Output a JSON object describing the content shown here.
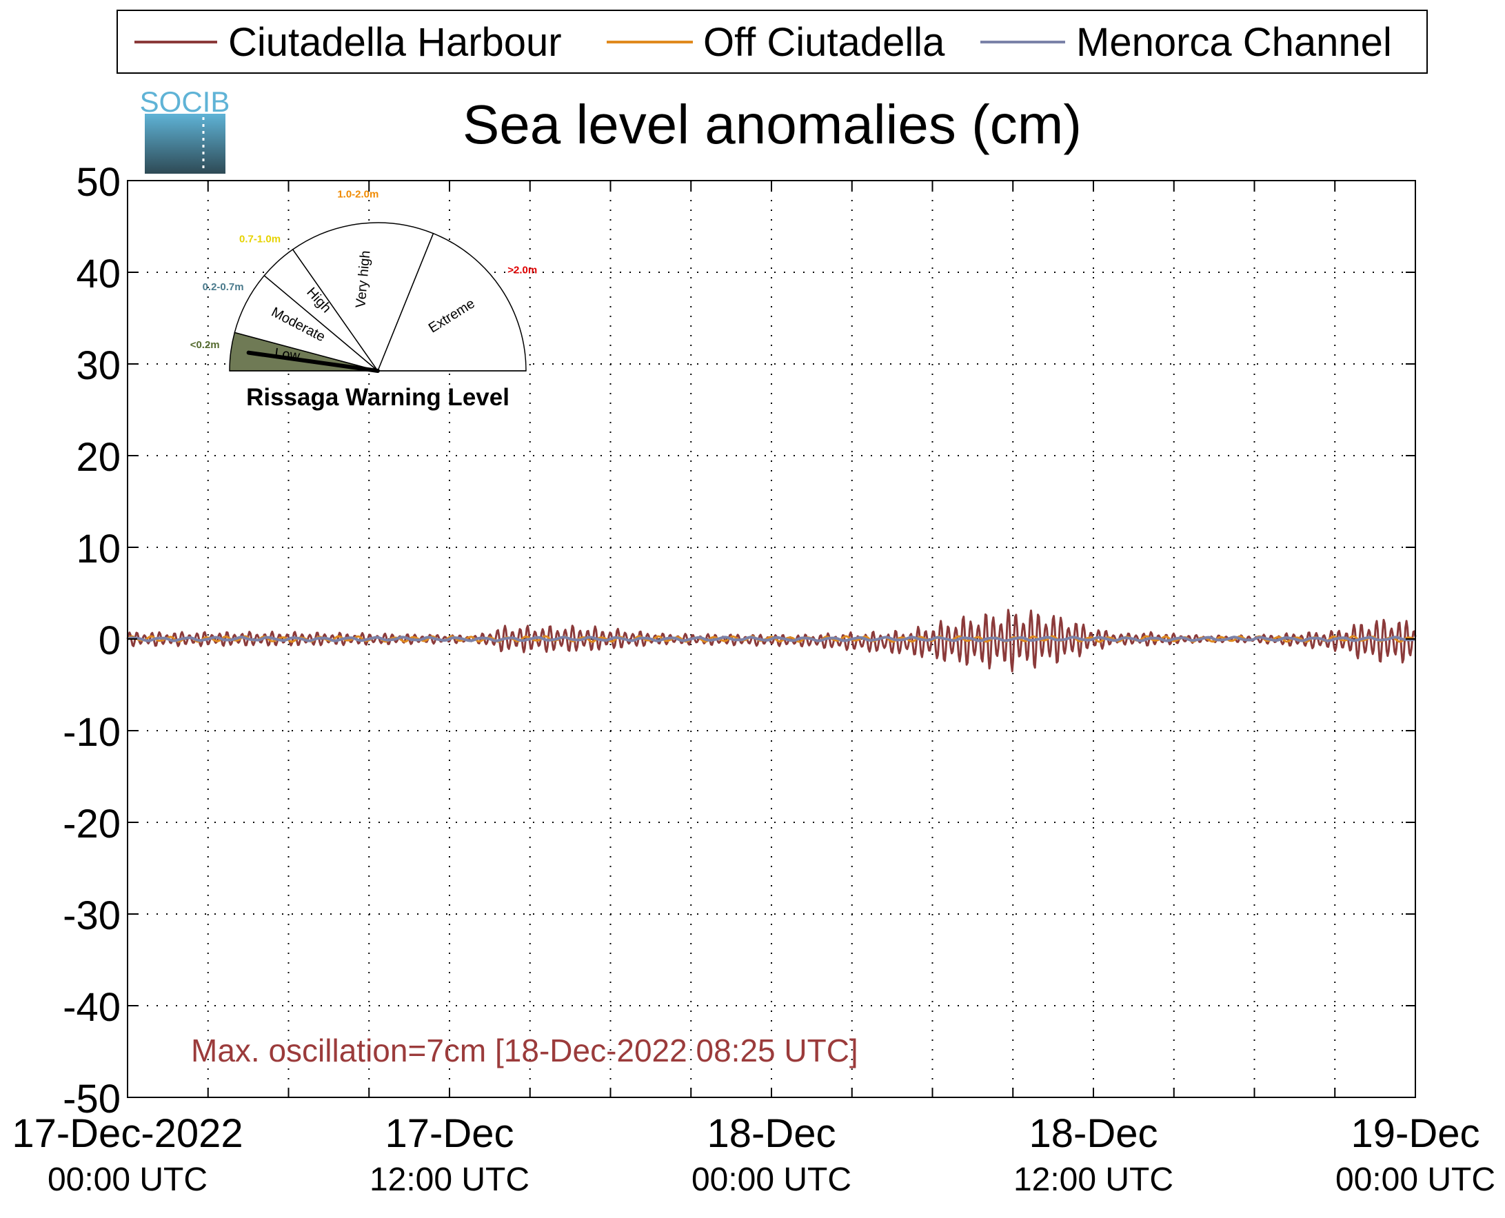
{
  "logo_text": "SOCIB",
  "annotation": "Max. oscillation=7cm [18-Dec-2022 08:25 UTC]",
  "colors": {
    "harbour": "#8b3a3a",
    "off": "#e08a1e",
    "channel": "#7b82a8",
    "annotation": "#9b3b3b",
    "gauge_low": "#6f7a55",
    "gauge_label_low": "#556b2f",
    "gauge_label_moderate": "#4a7a8c",
    "gauge_label_high": "#e6d200",
    "gauge_label_veryhigh": "#f08a00",
    "gauge_label_extreme": "#e00000",
    "logo_top": "#5fb3d6",
    "logo_bottom": "#2e4a55"
  },
  "gauge": {
    "title": "Rissaga Warning Level",
    "level": "Low",
    "sectors": [
      {
        "name": "Low",
        "range": "<0.2m"
      },
      {
        "name": "Moderate",
        "range": "0.2-0.7m"
      },
      {
        "name": "High",
        "range": "0.7-1.0m"
      },
      {
        "name": "Very high",
        "range": "1.0-2.0m"
      },
      {
        "name": "Extreme",
        "range": ">2.0m"
      }
    ]
  },
  "chart_data": {
    "type": "line",
    "title": "Sea level anomalies (cm)",
    "xlabel": "",
    "ylabel": "",
    "ylim": [
      -50,
      50
    ],
    "yticks": [
      -50,
      -40,
      -30,
      -20,
      -10,
      0,
      10,
      20,
      30,
      40,
      50
    ],
    "xlim": [
      "2022-12-17 00:00",
      "2022-12-19 00:00"
    ],
    "xticks": [
      {
        "line1": "17-Dec-2022",
        "line2": "00:00 UTC",
        "hour": 0
      },
      {
        "line1": "17-Dec",
        "line2": "12:00 UTC",
        "hour": 12
      },
      {
        "line1": "18-Dec",
        "line2": "00:00 UTC",
        "hour": 24
      },
      {
        "line1": "18-Dec",
        "line2": "12:00 UTC",
        "hour": 36
      },
      {
        "line1": "19-Dec",
        "line2": "00:00 UTC",
        "hour": 48
      }
    ],
    "minor_tick_hours": [
      3,
      6,
      9,
      15,
      18,
      21,
      27,
      30,
      33,
      39,
      42,
      45
    ],
    "grid": true,
    "legend_position": "top",
    "series": [
      {
        "name": "Ciutadella Harbour",
        "color": "#8b3a3a",
        "envelope": {
          "x_hours": [
            0,
            6,
            10,
            13,
            14,
            17,
            20,
            25,
            29,
            31,
            33,
            34,
            35,
            36,
            37,
            38,
            40,
            42,
            45,
            46,
            47,
            48
          ],
          "upper": [
            0.8,
            0.8,
            0.6,
            0.4,
            1.5,
            1.5,
            0.6,
            0.5,
            1.0,
            2.5,
            3.5,
            3.3,
            2.5,
            1.3,
            0.6,
            0.8,
            0.4,
            0.4,
            1.0,
            2.0,
            2.5,
            2.0
          ],
          "lower": [
            -0.8,
            -0.8,
            -0.6,
            -0.4,
            -1.5,
            -1.5,
            -0.6,
            -0.8,
            -1.8,
            -3.0,
            -3.6,
            -3.2,
            -2.5,
            -1.3,
            -0.6,
            -0.8,
            -0.4,
            -0.4,
            -1.3,
            -2.3,
            -2.8,
            -2.5
          ]
        }
      },
      {
        "name": "Off Ciutadella",
        "color": "#e08a1e",
        "envelope": {
          "x_hours": [
            0,
            48
          ],
          "upper": [
            0.3,
            0.3
          ],
          "lower": [
            -0.3,
            -0.3
          ]
        }
      },
      {
        "name": "Menorca Channel",
        "color": "#7b82a8",
        "envelope": {
          "x_hours": [
            0,
            48
          ],
          "upper": [
            0.2,
            0.2
          ],
          "lower": [
            -0.2,
            -0.2
          ]
        }
      }
    ]
  }
}
